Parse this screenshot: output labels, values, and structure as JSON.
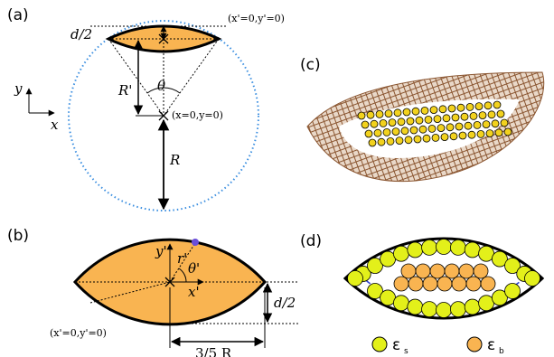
{
  "panel_a": {
    "label": "(a)",
    "half_thickness": "d/2",
    "lens_origin": "(x'=0,y'=0)",
    "axis_y": "y",
    "axis_x": "x",
    "inner_radius": "R'",
    "angle": "θ",
    "circle_origin": "(x=0,y=0)",
    "radius": "R"
  },
  "panel_b": {
    "label": "(b)",
    "axis_y": "y'",
    "radial": "r'",
    "angle": "θ'",
    "axis_x": "x'",
    "half_thickness": "d/2",
    "origin": "(x'=0,y'=0)",
    "half_width": "3/5 R"
  },
  "panel_c": {
    "label": "(c)"
  },
  "panel_d": {
    "label": "(d)",
    "legend": [
      {
        "symbol": "ε",
        "subscript": "s"
      },
      {
        "symbol": "ε",
        "subscript": "b"
      }
    ]
  }
}
